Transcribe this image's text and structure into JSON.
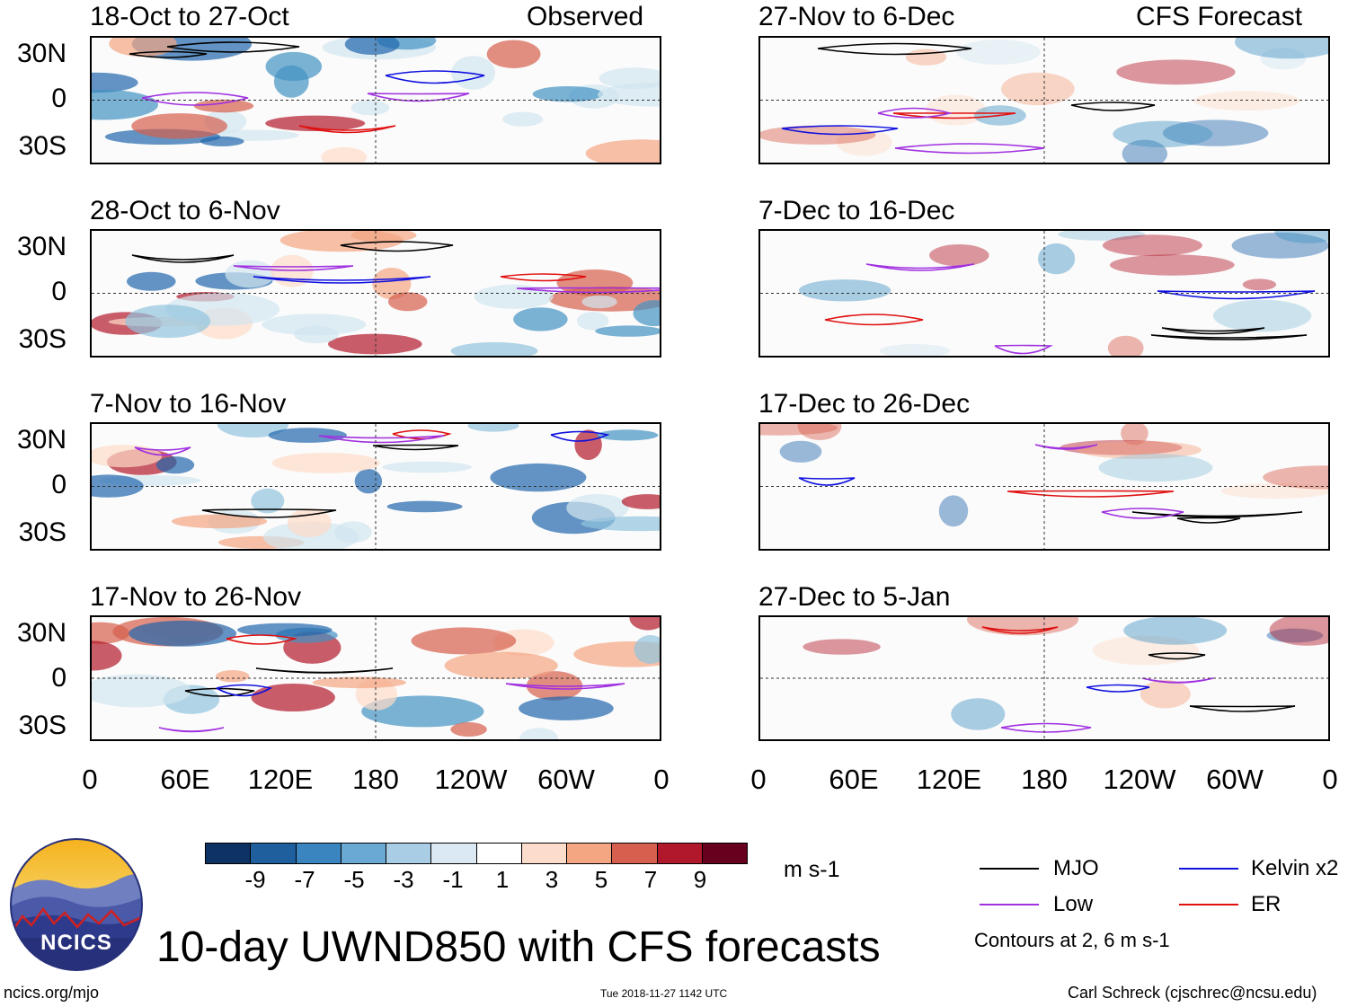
{
  "panels_left": [
    {
      "title": "18-Oct to 27-Oct",
      "tag": "Observed"
    },
    {
      "title": "28-Oct to 6-Nov",
      "tag": ""
    },
    {
      "title": "7-Nov to 16-Nov",
      "tag": ""
    },
    {
      "title": "17-Nov to 26-Nov",
      "tag": ""
    }
  ],
  "panels_right": [
    {
      "title": "27-Nov to 6-Dec",
      "tag": "CFS Forecast"
    },
    {
      "title": "7-Dec to 16-Dec",
      "tag": ""
    },
    {
      "title": "17-Dec to 26-Dec",
      "tag": ""
    },
    {
      "title": "27-Dec to 5-Jan",
      "tag": ""
    }
  ],
  "lat_labels": [
    "30N",
    "0",
    "30S"
  ],
  "lon_labels": [
    "0",
    "60E",
    "120E",
    "180",
    "120W",
    "60W",
    "0"
  ],
  "colorbar": {
    "labels": [
      "-9",
      "-7",
      "-5",
      "-3",
      "-1",
      "1",
      "3",
      "5",
      "7",
      "9"
    ],
    "colors": [
      "#0d3263",
      "#1f5f9e",
      "#3a85c0",
      "#6aa9d4",
      "#a9cde4",
      "#dbe9f4",
      "#ffffff",
      "#fcdcca",
      "#f4a582",
      "#d6604d",
      "#b2182b",
      "#67001f"
    ],
    "units": "m s-1"
  },
  "legend": {
    "items": [
      {
        "label": "MJO",
        "color": "#000000"
      },
      {
        "label": "Kelvin x2",
        "color": "#1010e0"
      },
      {
        "label": "Low",
        "color": "#a030e0"
      },
      {
        "label": "ER",
        "color": "#e01010"
      }
    ],
    "note": "Contours at 2, 6 m s-1"
  },
  "logo_text": "NCICS",
  "main_title": "10-day UWND850 with CFS forecasts",
  "footer": {
    "left": "ncics.org/mjo",
    "center": "Tue 2018-11-27 1142 UTC",
    "right": "Carl Schreck (cjschrec@ncsu.edu)"
  }
}
